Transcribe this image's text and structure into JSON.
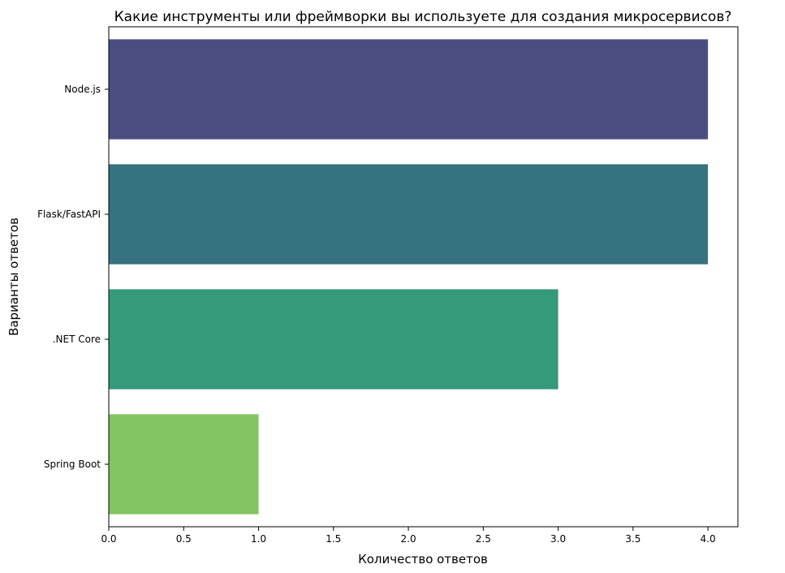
{
  "chart_data": {
    "type": "bar",
    "orientation": "horizontal",
    "title": "Какие инструменты или фреймворки вы используете для создания микросервисов?",
    "xlabel": "Количество ответов",
    "ylabel": "Варианты ответов",
    "categories": [
      "Node.js",
      "Flask/FastAPI",
      ".NET Core",
      "Spring Boot"
    ],
    "values": [
      4,
      4,
      3,
      1
    ],
    "colors": [
      "#4b4e80",
      "#37727f",
      "#35997c",
      "#82c462"
    ],
    "xlim": [
      0,
      4.2
    ],
    "xticks": [
      "0.0",
      "0.5",
      "1.0",
      "1.5",
      "2.0",
      "2.5",
      "3.0",
      "3.5",
      "4.0"
    ],
    "grid": false,
    "legend": "none"
  }
}
